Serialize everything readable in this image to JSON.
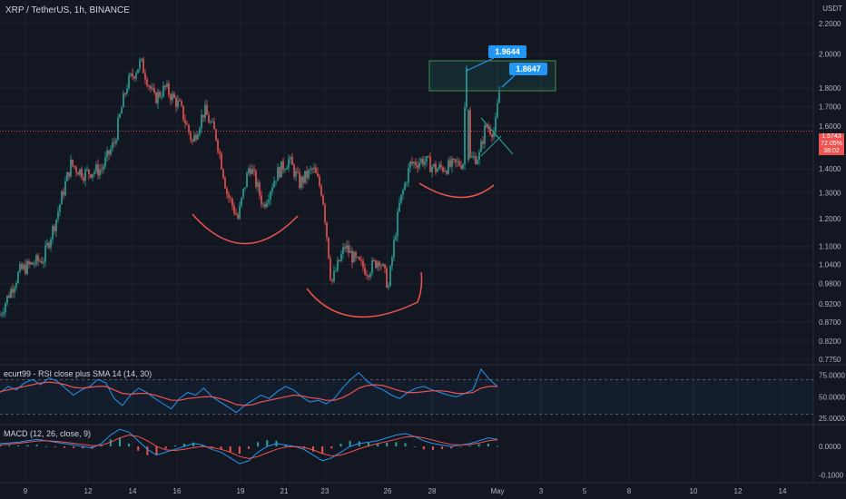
{
  "header": {
    "title": "XRP / TetherUS, 1h, BINANCE",
    "currency": "USDT"
  },
  "price_tag": {
    "price": "1.5743",
    "percent": "72.05%",
    "countdown": "38:02"
  },
  "colors": {
    "background": "#131722",
    "grid": "#1e222d",
    "up": "#26a69a",
    "down": "#ef5350",
    "annotation": "#ef5350",
    "callout": "#2196f3",
    "rsi_line": "#2196f3",
    "rsi_sma": "#ef5350",
    "macd_line": "#2196f3",
    "signal_line": "#ef5350"
  },
  "rsi_label": "ecurt99 - RSI close plus SMA 14 (14, 30)",
  "macd_label": "MACD (12, 26, close, 9)",
  "chart_data": [
    {
      "type": "candlestick",
      "title": "XRP / TetherUS, 1h, BINANCE",
      "ylabel": "USDT",
      "y_scale": "log",
      "ylim": [
        0.775,
        2.3
      ],
      "y_ticks": [
        "2.2000",
        "2.0000",
        "1.8000",
        "1.7000",
        "1.6000",
        "1.4000",
        "1.3000",
        "1.2000",
        "1.1000",
        "1.0400",
        "0.9800",
        "0.9200",
        "0.8700",
        "0.8200",
        "0.7750"
      ],
      "x_ticks": [
        "9",
        "12",
        "14",
        "16",
        "19",
        "21",
        "23",
        "26",
        "28",
        "May",
        "3",
        "5",
        "8",
        "10",
        "12",
        "14"
      ],
      "price_path": [
        [
          0,
          0.89
        ],
        [
          10,
          0.95
        ],
        [
          22,
          1.02
        ],
        [
          34,
          1.04
        ],
        [
          48,
          1.06
        ],
        [
          62,
          1.2
        ],
        [
          78,
          1.42
        ],
        [
          92,
          1.38
        ],
        [
          112,
          1.4
        ],
        [
          126,
          1.52
        ],
        [
          140,
          1.82
        ],
        [
          155,
          1.95
        ],
        [
          170,
          1.74
        ],
        [
          182,
          1.8
        ],
        [
          198,
          1.7
        ],
        [
          212,
          1.52
        ],
        [
          225,
          1.68
        ],
        [
          238,
          1.55
        ],
        [
          250,
          1.3
        ],
        [
          262,
          1.2
        ],
        [
          275,
          1.42
        ],
        [
          290,
          1.25
        ],
        [
          305,
          1.38
        ],
        [
          318,
          1.44
        ],
        [
          330,
          1.34
        ],
        [
          345,
          1.4
        ],
        [
          355,
          1.3
        ],
        [
          365,
          0.98
        ],
        [
          380,
          1.1
        ],
        [
          392,
          1.05
        ],
        [
          405,
          1.02
        ],
        [
          418,
          1.06
        ],
        [
          428,
          0.97
        ],
        [
          440,
          1.25
        ],
        [
          452,
          1.42
        ],
        [
          466,
          1.44
        ],
        [
          480,
          1.4
        ],
        [
          495,
          1.41
        ],
        [
          510,
          1.43
        ],
        [
          514,
          1.96
        ],
        [
          518,
          1.44
        ],
        [
          528,
          1.46
        ],
        [
          535,
          1.6
        ],
        [
          545,
          1.57
        ],
        [
          552,
          1.86
        ]
      ],
      "annotations": [
        "1.9644",
        "1.8647"
      ]
    },
    {
      "type": "line",
      "title": "ecurt99 - RSI close plus SMA 14 (14, 30)",
      "ylim": [
        20,
        85
      ],
      "y_ticks": [
        "75.0000",
        "50.0000",
        "25.0000"
      ],
      "series": [
        {
          "values": [
            55,
            62,
            58,
            66,
            70,
            64,
            72,
            68,
            60,
            52,
            58,
            62,
            70,
            66,
            48,
            40,
            52,
            60,
            55,
            48,
            42,
            36,
            48,
            55,
            52,
            60,
            50,
            44,
            38,
            32,
            40,
            46,
            52,
            48,
            56,
            62,
            58,
            50,
            44,
            46,
            42,
            48,
            60,
            70,
            78,
            68,
            62,
            58,
            52,
            48,
            55,
            60,
            62,
            58,
            55,
            52,
            50,
            54,
            58,
            82,
            70,
            62
          ]
        },
        {
          "values": [
            56,
            58,
            60,
            62,
            64,
            66,
            67,
            66,
            64,
            61,
            60,
            61,
            62,
            62,
            58,
            54,
            53,
            54,
            54,
            52,
            49,
            46,
            46,
            48,
            49,
            50,
            50,
            48,
            45,
            41,
            40,
            41,
            44,
            46,
            48,
            50,
            52,
            51,
            49,
            48,
            46,
            46,
            49,
            54,
            60,
            63,
            64,
            63,
            60,
            57,
            55,
            55,
            56,
            57,
            57,
            56,
            54,
            54,
            55,
            60,
            62,
            62
          ]
        }
      ]
    },
    {
      "type": "bar",
      "title": "MACD (12, 26, close, 9)",
      "ylim": [
        -0.12,
        0.07
      ],
      "y_ticks": [
        "0.0000",
        "-0.1000"
      ],
      "series": [
        {
          "values": [
            0.01,
            0.012,
            0.015,
            0.02,
            0.025,
            0.02,
            0.015,
            0.01,
            0.005,
            0.0,
            -0.005,
            0.01,
            0.04,
            0.06,
            0.05,
            0.02,
            -0.01,
            -0.03,
            -0.02,
            -0.01,
            0.0,
            0.01,
            0.005,
            -0.01,
            -0.02,
            -0.04,
            -0.06,
            -0.05,
            -0.02,
            0.0,
            0.01,
            0.005,
            0.0,
            -0.01,
            -0.03,
            -0.05,
            -0.04,
            -0.02,
            0.0,
            0.01,
            0.015,
            0.02,
            0.03,
            0.04,
            0.045,
            0.035,
            0.02,
            0.01,
            0.005,
            0.0,
            0.005,
            0.01,
            0.02,
            0.03,
            0.025
          ]
        },
        {
          "values": [
            0.005,
            0.008,
            0.011,
            0.015,
            0.019,
            0.02,
            0.018,
            0.015,
            0.011,
            0.007,
            0.003,
            0.004,
            0.015,
            0.03,
            0.04,
            0.035,
            0.02,
            0.0,
            -0.012,
            -0.014,
            -0.01,
            -0.004,
            0.0,
            -0.003,
            -0.01,
            -0.02,
            -0.035,
            -0.042,
            -0.035,
            -0.022,
            -0.01,
            -0.002,
            0.0,
            -0.003,
            -0.012,
            -0.025,
            -0.033,
            -0.03,
            -0.02,
            -0.008,
            0.002,
            0.01,
            0.017,
            0.025,
            0.033,
            0.035,
            0.03,
            0.022,
            0.014,
            0.007,
            0.005,
            0.007,
            0.012,
            0.02,
            0.023
          ]
        }
      ]
    }
  ]
}
